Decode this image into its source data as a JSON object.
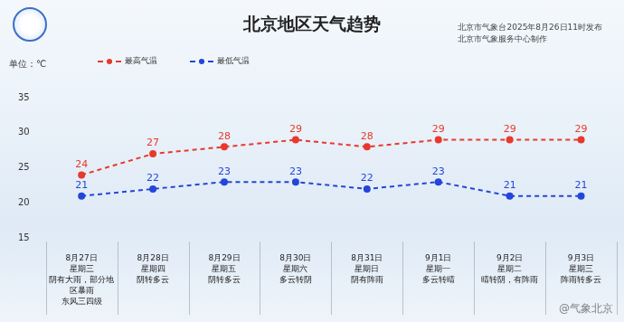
{
  "chart_data": {
    "type": "line",
    "title": "北京地区天气趋势",
    "subtitle": [
      "北京市气象台2025年8月26日11时发布",
      "北京市气象服务中心制作"
    ],
    "y_label": "单位：℃",
    "annotations": [
      "@气象北京"
    ],
    "categories": [
      [
        "8月27日",
        "星期三",
        "阴有大雨，部分地",
        "区暴雨",
        "东风三四级"
      ],
      [
        "8月28日",
        "星期四",
        "阴转多云"
      ],
      [
        "8月29日",
        "星期五",
        "阴转多云"
      ],
      [
        "8月30日",
        "星期六",
        "多云转阴"
      ],
      [
        "8月31日",
        "星期日",
        "阴有阵雨"
      ],
      [
        "9月1日",
        "星期一",
        "多云转晴"
      ],
      [
        "9月2日",
        "星期二",
        "晴转阴，有阵雨"
      ],
      [
        "9月3日",
        "星期三",
        "阵雨转多云"
      ]
    ],
    "series": [
      {
        "name": "最高气温",
        "color": "#e8392b",
        "values": [
          24,
          27,
          28,
          29,
          28,
          29,
          29,
          29
        ],
        "marker": "circle",
        "line_style": "dashed"
      },
      {
        "name": "最低气温",
        "color": "#2446d8",
        "values": [
          21,
          22,
          23,
          23,
          22,
          23,
          21,
          21
        ],
        "marker": "circle",
        "line_style": "dashed"
      }
    ],
    "ylim": [
      15,
      35
    ],
    "yticks": [
      15,
      20,
      25,
      30,
      35
    ],
    "grid": false,
    "legend": "top left",
    "data_labels": true
  }
}
